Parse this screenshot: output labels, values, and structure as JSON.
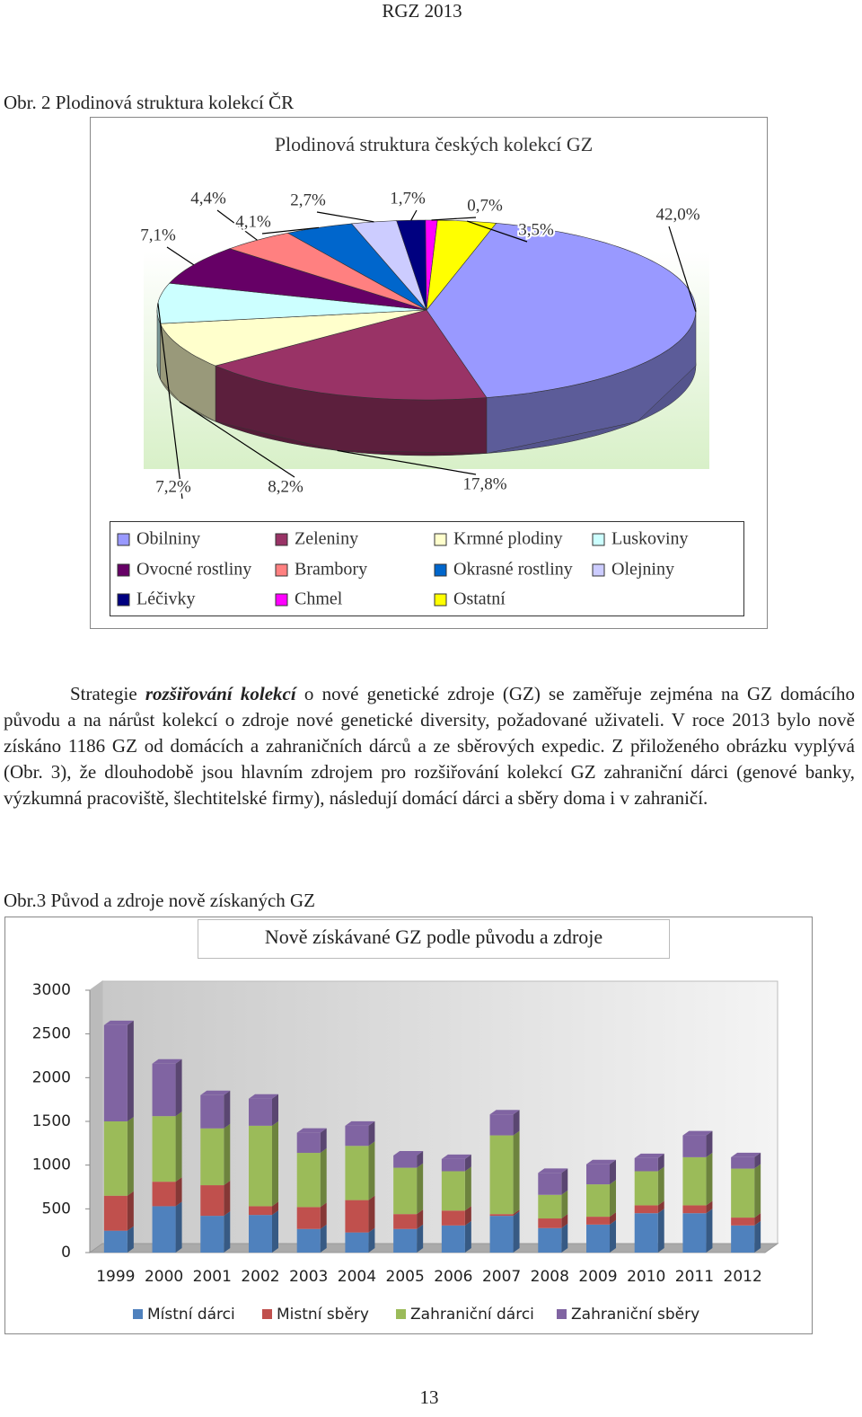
{
  "header": "RGZ 2013",
  "figure1_caption": "Obr. 2 Plodinová struktura kolekcí ČR",
  "paragraph": [
    "Strategie ",
    "rozšiřování kolekcí",
    " o nové genetické zdroje (GZ) se zaměřuje zejména na GZ domácího původu a na nárůst kolekcí o zdroje nové genetické diversity, požadované uživateli. V roce 2013 bylo nově získáno 1186 GZ  od domácích a zahraničních dárců a ze sběrových expedic. Z přiloženého obrázku vyplývá (Obr. 3), že dlouhodobě jsou hlavním zdrojem pro rozšiřování kolekcí GZ zahraniční dárci (genové banky, výzkumná pracoviště, šlechtitelské firmy), následují domácí dárci a sběry doma i v zahraničí."
  ],
  "figure2_caption": "Obr.3 Původ a zdroje nově získaných GZ",
  "page_number": "13",
  "chart_data": [
    {
      "type": "pie",
      "title": "Plodinová struktura českých kolekcí GZ",
      "categories": [
        "Obilniny",
        "Zeleniny",
        "Krmné plodiny",
        "Luskoviny",
        "Ovocné rostliny",
        "Brambory",
        "Okrasné rostliny",
        "Olejniny",
        "Léčivky",
        "Chmel",
        "Ostatní"
      ],
      "values": [
        42.0,
        17.8,
        8.2,
        7.2,
        7.1,
        4.4,
        4.1,
        2.7,
        1.7,
        0.7,
        3.5
      ],
      "value_labels": [
        "42,0%",
        "17,8%",
        "8,2%",
        "7,2%",
        "7,1%",
        "4,4%",
        "4,1%",
        "2,7%",
        "1,7%",
        "0,7%",
        "3,5%"
      ],
      "colors": [
        "#9999ff",
        "#993366",
        "#ffffcc",
        "#ccffff",
        "#660066",
        "#ff8080",
        "#0066cc",
        "#ccccff",
        "#000080",
        "#ff00ff",
        "#ffff00"
      ]
    },
    {
      "type": "bar",
      "stacked": true,
      "title": "Nově získávané GZ podle původu a zdroje",
      "categories": [
        "1999",
        "2000",
        "2001",
        "2002",
        "2003",
        "2004",
        "2005",
        "2006",
        "2007",
        "2008",
        "2009",
        "2010",
        "2011",
        "2012"
      ],
      "series": [
        {
          "name": "Místní dárci",
          "color": "#4f81bd",
          "values": [
            250,
            530,
            420,
            430,
            270,
            230,
            270,
            310,
            420,
            280,
            320,
            450,
            450,
            310
          ]
        },
        {
          "name": "Mistní sběry",
          "color": "#c0504d",
          "values": [
            400,
            280,
            350,
            100,
            250,
            370,
            170,
            170,
            20,
            110,
            90,
            90,
            90,
            90
          ]
        },
        {
          "name": "Zahraniční dárci",
          "color": "#9bbb59",
          "values": [
            850,
            750,
            650,
            920,
            620,
            620,
            530,
            450,
            900,
            270,
            370,
            390,
            550,
            560
          ]
        },
        {
          "name": "Zahraniční sběry",
          "color": "#8064a2",
          "values": [
            1100,
            600,
            380,
            310,
            230,
            230,
            140,
            140,
            240,
            250,
            230,
            150,
            250,
            130
          ]
        }
      ],
      "ylim": [
        0,
        3000
      ],
      "yticks": [
        0,
        500,
        1000,
        1500,
        2000,
        2500,
        3000
      ],
      "grid": false
    }
  ]
}
